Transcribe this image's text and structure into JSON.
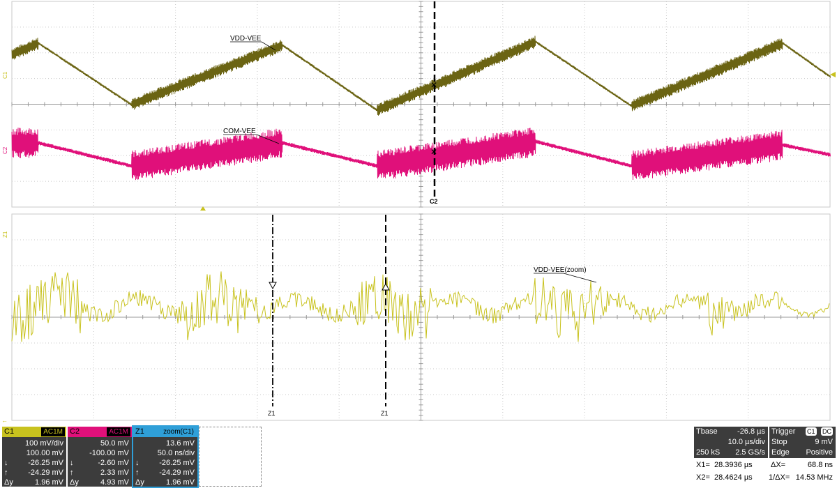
{
  "waveforms": {
    "c1_label": "VDD-VEE",
    "c2_label": "COM-VEE",
    "z1_label": "VDD-VEE(zoom)",
    "cursor_c2_label": "C2",
    "cursor_z1_label": "Z1",
    "marker_c1": "C1",
    "marker_c2": "C2",
    "marker_z1": "Z1",
    "colors": {
      "c1": "#6b6413",
      "c2": "#e0107a",
      "z1": "#c8c21e",
      "grid": "#c8c8c8"
    }
  },
  "channels": [
    {
      "name": "C1",
      "tag": "AC1M",
      "header_color": "#c8c21e",
      "rows": [
        {
          "label": "",
          "value": "100 mV/div"
        },
        {
          "label": "",
          "value": "100.00 mV"
        },
        {
          "label": "↓",
          "value": "-26.25 mV"
        },
        {
          "label": "↑",
          "value": "-24.29 mV"
        },
        {
          "label": "Δy",
          "value": "1.96 mV"
        }
      ]
    },
    {
      "name": "C2",
      "tag": "AC1M",
      "header_color": "#e0107a",
      "rows": [
        {
          "label": "",
          "value": "50.0 mV"
        },
        {
          "label": "",
          "value": "-100.00 mV"
        },
        {
          "label": "↓",
          "value": "-2.60 mV"
        },
        {
          "label": "↑",
          "value": "2.33 mV"
        },
        {
          "label": "Δy",
          "value": "4.93 mV"
        }
      ]
    },
    {
      "name": "Z1",
      "tag": "zoom(C1)",
      "header_color": "#2f9fd8",
      "rows": [
        {
          "label": "",
          "value": "13.6 mV"
        },
        {
          "label": "",
          "value": "50.0 ns/div"
        },
        {
          "label": "↓",
          "value": "-26.25 mV"
        },
        {
          "label": "↑",
          "value": "-24.29 mV"
        },
        {
          "label": "Δy",
          "value": "1.96 mV"
        }
      ]
    }
  ],
  "timebase": {
    "title": "Tbase",
    "offset": "-26.8 µs",
    "per_div": "10.0 µs/div",
    "samples": "250 kS",
    "rate": "2.5 GS/s"
  },
  "trigger": {
    "title": "Trigger",
    "src": "C1",
    "coupling": "DC",
    "mode": "Stop",
    "level": "9 mV",
    "type": "Edge",
    "slope": "Positive"
  },
  "cursors": {
    "x1_label": "X1=",
    "x1": "28.3936 µs",
    "x2_label": "X2=",
    "x2": "28.4624 µs",
    "dx_label": "ΔX=",
    "dx": "68.8 ns",
    "inv_label": "1/ΔX=",
    "inv": "14.53 MHz"
  }
}
